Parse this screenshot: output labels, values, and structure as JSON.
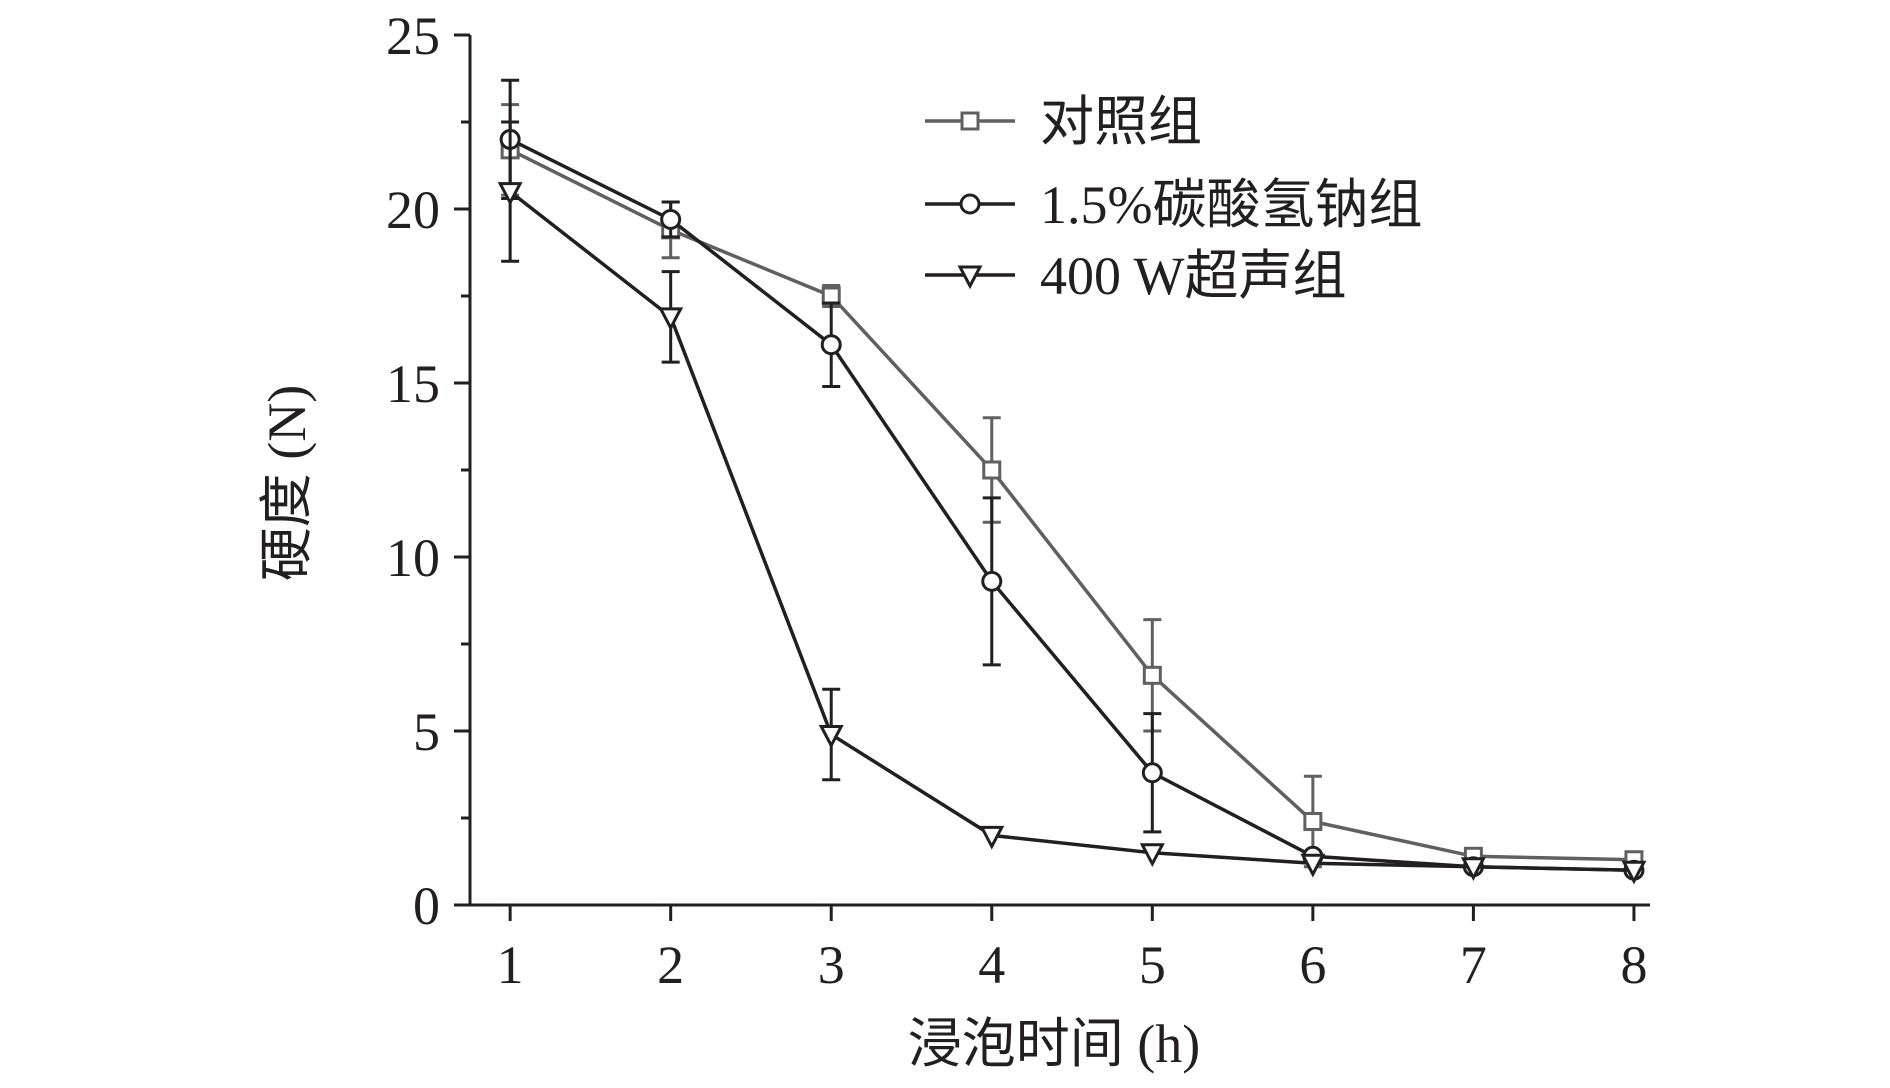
{
  "chart_data": {
    "type": "line",
    "x": [
      1,
      2,
      3,
      4,
      5,
      6,
      7,
      8
    ],
    "xlabel": "浸泡时间 (h)",
    "ylabel": "硬度 (N)",
    "xlim": [
      0.75,
      8.1
    ],
    "ylim": [
      0,
      25
    ],
    "xticks": [
      "1",
      "2",
      "3",
      "4",
      "5",
      "6",
      "7",
      "8"
    ],
    "yticks": [
      "0",
      "5",
      "10",
      "15",
      "20",
      "25"
    ],
    "grid": false,
    "legend_position": "top-right",
    "series": [
      {
        "name": "对照组",
        "marker": "square",
        "color": "#606060",
        "values": [
          21.7,
          19.4,
          17.5,
          12.5,
          6.6,
          2.4,
          1.4,
          1.3
        ],
        "errors": [
          1.3,
          0.8,
          0.3,
          1.5,
          1.6,
          1.3,
          0.1,
          0.1
        ]
      },
      {
        "name": "1.5%碳酸氢钠组",
        "marker": "circle",
        "color": "#231f20",
        "values": [
          22.0,
          19.7,
          16.1,
          9.3,
          3.8,
          1.4,
          1.1,
          1.0
        ],
        "errors": [
          1.7,
          0.5,
          1.2,
          2.4,
          1.7,
          0.1,
          0.1,
          0.1
        ]
      },
      {
        "name": "400 W超声组",
        "marker": "triangle-down",
        "color": "#231f20",
        "values": [
          20.5,
          16.9,
          4.9,
          2.0,
          1.5,
          1.2,
          1.1,
          1.0
        ],
        "errors": [
          2.0,
          1.3,
          1.3,
          0.1,
          0.1,
          0.1,
          0.1,
          0.1
        ]
      }
    ]
  }
}
